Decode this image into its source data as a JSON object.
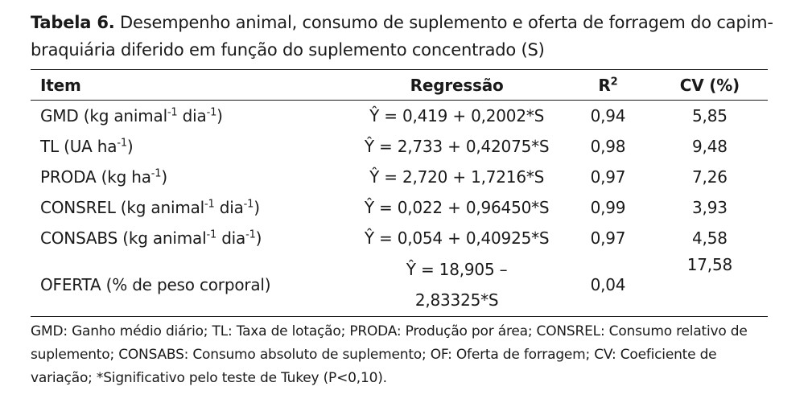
{
  "caption": {
    "label": "Tabela 6.",
    "text": " Desempenho animal, consumo de suplemento e oferta de forragem do capim-braquiária diferido em função do suplemento concentrado (S)"
  },
  "table": {
    "headers": {
      "item": "Item",
      "regressao": "Regressão",
      "r2_base": "R",
      "r2_sup": "2",
      "cv": "CV (%)"
    },
    "rows": [
      {
        "item_parts": [
          "GMD (kg animal",
          "-1",
          " dia",
          "-1",
          ")"
        ],
        "regressao": "Ŷ = 0,419 + 0,2002*S",
        "r2": "0,94",
        "cv": "5,85"
      },
      {
        "item_parts": [
          "TL (UA ha",
          "-1",
          ")"
        ],
        "regressao": "Ŷ = 2,733 + 0,42075*S",
        "r2": "0,98",
        "cv": "9,48"
      },
      {
        "item_parts": [
          "PRODA (kg ha",
          "-1",
          ")"
        ],
        "regressao": "Ŷ = 2,720 + 1,7216*S",
        "r2": "0,97",
        "cv": "7,26"
      },
      {
        "item_parts": [
          "CONSREL (kg animal",
          "-1",
          " dia",
          "-1",
          ")"
        ],
        "regressao": "Ŷ = 0,022 + 0,96450*S",
        "r2": "0,99",
        "cv": "3,93"
      },
      {
        "item_parts": [
          "CONSABS (kg animal",
          "-1",
          " dia",
          "-1",
          ")"
        ],
        "regressao": "Ŷ = 0,054 + 0,40925*S",
        "r2": "0,97",
        "cv": "4,58"
      },
      {
        "item_parts": [
          "OFERTA (% de peso corporal)"
        ],
        "regressao_line1": "Ŷ = 18,905 –",
        "regressao_line2": "2,83325*S",
        "r2": "0,04",
        "cv": "17,58"
      }
    ]
  },
  "notes": "GMD: Ganho médio diário; TL: Taxa de lotação; PRODA: Produção por área; CONSREL: Consumo relativo de suplemento; CONSABS: Consumo absoluto de suplemento; OF: Oferta de forragem; CV: Coeficiente de variação; *Significativo pelo teste de Tukey (P<0,10)."
}
